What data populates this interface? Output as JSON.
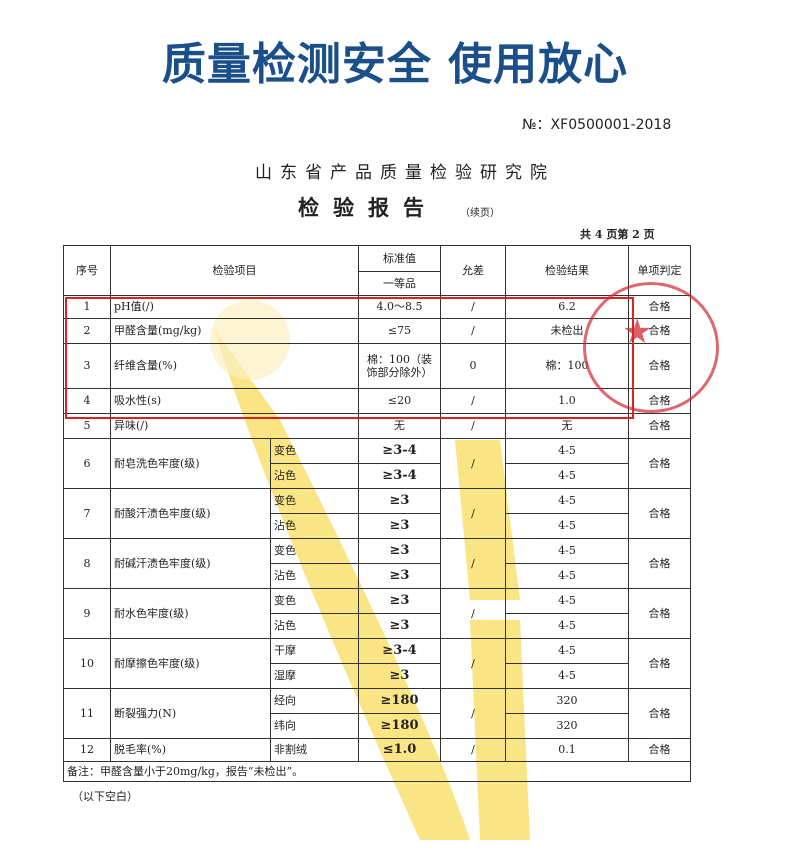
{
  "headline": "质量检测安全 使用放心",
  "doc_no": "№：XF0500001-2018",
  "institute": "山东省产品质量检验研究院",
  "report_title": "检验报告",
  "report_sub": "（续页）",
  "pages": "共 4 页第 2 页",
  "colors": {
    "headline": "#1b4f8a",
    "highlight": "#e02020",
    "stamp": "#d22832",
    "watermark": "#f5d23c"
  },
  "table": {
    "headers": {
      "no": "序号",
      "item": "检验项目",
      "standard": "标准值",
      "grade": "一等品",
      "tolerance": "允差",
      "result": "检验结果",
      "verdict": "单项判定"
    },
    "rows": [
      {
        "no": "1",
        "item": "pH值(/)",
        "standard": "4.0～8.5",
        "tolerance": "/",
        "result": "6.2",
        "verdict": "合格"
      },
      {
        "no": "2",
        "item": "甲醛含量(mg/kg)",
        "standard": "≤75",
        "tolerance": "/",
        "result": "未检出",
        "verdict": "合格"
      },
      {
        "no": "3",
        "item": "纤维含量(%)",
        "standard": "棉：100（装饰部分除外）",
        "tolerance": "0",
        "result": "棉：100",
        "verdict": "合格"
      },
      {
        "no": "4",
        "item": "吸水性(s)",
        "standard": "≤20",
        "tolerance": "/",
        "result": "1.0",
        "verdict": "合格"
      },
      {
        "no": "5",
        "item": "异味(/)",
        "standard": "无",
        "tolerance": "/",
        "result": "无",
        "verdict": "合格"
      }
    ],
    "sub_rows": [
      {
        "no": "6",
        "item": "耐皂洗色牢度(级)",
        "verdict": "合格",
        "subs": [
          {
            "label": "变色",
            "standard": "≥3-4",
            "result": "4-5"
          },
          {
            "label": "沾色",
            "standard": "≥3-4",
            "result": "4-5"
          }
        ]
      },
      {
        "no": "7",
        "item": "耐酸汗渍色牢度(级)",
        "verdict": "合格",
        "subs": [
          {
            "label": "变色",
            "standard": "≥3",
            "result": "4-5"
          },
          {
            "label": "沾色",
            "standard": "≥3",
            "result": "4-5"
          }
        ]
      },
      {
        "no": "8",
        "item": "耐碱汗渍色牢度(级)",
        "verdict": "合格",
        "subs": [
          {
            "label": "变色",
            "standard": "≥3",
            "result": "4-5"
          },
          {
            "label": "沾色",
            "standard": "≥3",
            "result": "4-5"
          }
        ]
      },
      {
        "no": "9",
        "item": "耐水色牢度(级)",
        "verdict": "合格",
        "subs": [
          {
            "label": "变色",
            "standard": "≥3",
            "result": "4-5"
          },
          {
            "label": "沾色",
            "standard": "≥3",
            "result": "4-5"
          }
        ]
      },
      {
        "no": "10",
        "item": "耐摩擦色牢度(级)",
        "verdict": "合格",
        "subs": [
          {
            "label": "干摩",
            "standard": "≥3-4",
            "result": "4-5"
          },
          {
            "label": "湿摩",
            "standard": "≥3",
            "result": "4-5"
          }
        ]
      },
      {
        "no": "11",
        "item": "断裂强力(N)",
        "verdict": "合格",
        "subs": [
          {
            "label": "经向",
            "standard": "≥180",
            "result": "320"
          },
          {
            "label": "纬向",
            "standard": "≥180",
            "result": "320"
          }
        ]
      }
    ],
    "last_row": {
      "no": "12",
      "item": "脱毛率(%)",
      "sub": "非割绒",
      "standard": "≤1.0",
      "tolerance": "/",
      "result": "0.1",
      "verdict": "合格"
    },
    "note": "备注：甲醛含量小于20mg/kg，报告“未检出”。"
  },
  "blank_note": "（以下空白）"
}
